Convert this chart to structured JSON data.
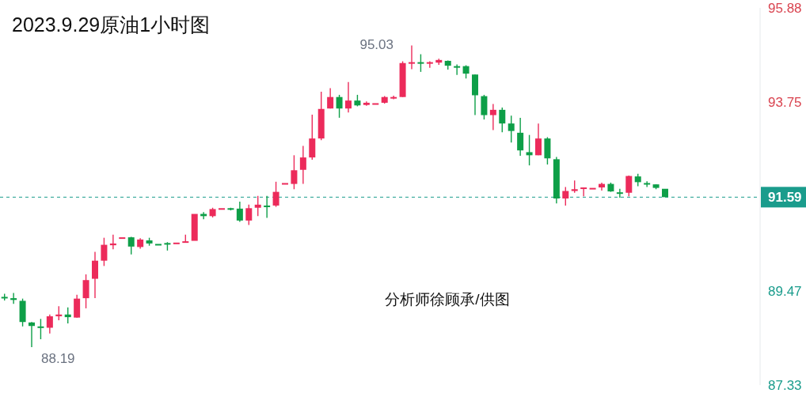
{
  "chart_data": {
    "type": "candlestick",
    "title": "2023.9.29原油1小时图",
    "categories": [
      null,
      null,
      null,
      null,
      null,
      null,
      null,
      null,
      null,
      null,
      null,
      null,
      null,
      null,
      null,
      null,
      null,
      null,
      null,
      null,
      null,
      null,
      null,
      null,
      null,
      null,
      null,
      null,
      null,
      null,
      null,
      null,
      null,
      null,
      null,
      null,
      null,
      null,
      null,
      null,
      null,
      null,
      null,
      null,
      null,
      null,
      null,
      null,
      null,
      null,
      null,
      null,
      null,
      null,
      null,
      null,
      null,
      null,
      null,
      null,
      null,
      null,
      null,
      null,
      null,
      null,
      null,
      null,
      null,
      null,
      null,
      null,
      null,
      null,
      null,
      null,
      null,
      null,
      null,
      null,
      null,
      null,
      null,
      null
    ],
    "ohlc": [
      [
        89.33,
        89.4,
        89.25,
        89.31
      ],
      [
        89.3,
        89.42,
        89.17,
        89.26
      ],
      [
        89.24,
        89.29,
        88.66,
        88.76
      ],
      [
        88.75,
        88.76,
        88.19,
        88.67
      ],
      [
        88.66,
        88.83,
        88.37,
        88.63
      ],
      [
        88.63,
        88.93,
        88.5,
        88.89
      ],
      [
        88.89,
        89.12,
        88.8,
        88.93
      ],
      [
        88.93,
        89.09,
        88.73,
        88.87
      ],
      [
        88.86,
        89.38,
        88.86,
        89.29
      ],
      [
        89.3,
        89.84,
        89.07,
        89.71
      ],
      [
        89.74,
        90.35,
        89.3,
        90.15
      ],
      [
        90.15,
        90.67,
        90.03,
        90.51
      ],
      [
        90.5,
        90.74,
        90.41,
        90.54
      ],
      [
        90.66,
        90.68,
        90.66,
        90.68
      ],
      [
        90.68,
        90.69,
        90.29,
        90.47
      ],
      [
        90.46,
        90.66,
        90.42,
        90.63
      ],
      [
        90.61,
        90.67,
        90.49,
        90.54
      ],
      [
        90.53,
        90.53,
        90.52,
        90.52
      ],
      [
        90.55,
        90.57,
        90.38,
        90.54
      ],
      [
        90.54,
        90.56,
        90.52,
        90.56
      ],
      [
        90.57,
        90.74,
        90.57,
        90.59
      ],
      [
        90.6,
        91.21,
        90.6,
        91.21
      ],
      [
        91.21,
        91.25,
        91.09,
        91.16
      ],
      [
        91.16,
        91.35,
        91.13,
        91.32
      ],
      [
        91.32,
        91.35,
        91.3,
        91.34
      ],
      [
        91.34,
        91.35,
        91.29,
        91.31
      ],
      [
        91.33,
        91.49,
        91.03,
        91.06
      ],
      [
        91.06,
        91.42,
        90.96,
        91.34
      ],
      [
        91.35,
        91.62,
        91.16,
        91.42
      ],
      [
        91.4,
        91.62,
        91.12,
        91.38
      ],
      [
        91.4,
        91.94,
        91.37,
        91.71
      ],
      [
        91.89,
        91.91,
        91.89,
        91.91
      ],
      [
        91.89,
        92.54,
        91.77,
        92.2
      ],
      [
        92.21,
        92.75,
        91.89,
        92.49
      ],
      [
        92.49,
        93.46,
        92.44,
        92.92
      ],
      [
        92.92,
        93.98,
        92.88,
        93.59
      ],
      [
        93.6,
        94.06,
        93.6,
        93.86
      ],
      [
        93.86,
        93.91,
        93.39,
        93.6
      ],
      [
        93.6,
        94.2,
        93.51,
        93.78
      ],
      [
        93.78,
        93.91,
        93.65,
        93.67
      ],
      [
        93.68,
        93.76,
        93.66,
        93.73
      ],
      [
        93.71,
        93.72,
        93.71,
        93.72
      ],
      [
        93.73,
        93.88,
        93.71,
        93.86
      ],
      [
        93.84,
        93.89,
        93.81,
        93.86
      ],
      [
        93.86,
        94.67,
        93.86,
        94.63
      ],
      [
        94.63,
        95.03,
        94.49,
        94.65
      ],
      [
        94.65,
        94.83,
        94.43,
        94.63
      ],
      [
        94.63,
        94.67,
        94.52,
        94.65
      ],
      [
        94.64,
        94.73,
        94.59,
        94.7
      ],
      [
        94.68,
        94.69,
        94.48,
        94.57
      ],
      [
        94.56,
        94.6,
        94.36,
        94.54
      ],
      [
        94.56,
        94.58,
        94.28,
        94.39
      ],
      [
        94.37,
        94.37,
        93.45,
        93.9
      ],
      [
        93.88,
        93.91,
        93.35,
        93.45
      ],
      [
        93.45,
        93.7,
        93.11,
        93.57
      ],
      [
        93.57,
        93.62,
        93.06,
        93.26
      ],
      [
        93.26,
        93.44,
        92.83,
        93.09
      ],
      [
        93.05,
        93.39,
        92.53,
        92.65
      ],
      [
        92.61,
        93.0,
        92.31,
        92.54
      ],
      [
        92.54,
        93.26,
        92.54,
        92.92
      ],
      [
        92.92,
        92.95,
        92.33,
        92.47
      ],
      [
        92.45,
        92.5,
        91.45,
        91.56
      ],
      [
        91.56,
        91.82,
        91.4,
        91.73
      ],
      [
        91.73,
        91.97,
        91.69,
        91.77
      ],
      [
        91.78,
        91.81,
        91.61,
        91.81
      ],
      [
        91.79,
        91.8,
        91.79,
        91.8
      ],
      [
        91.81,
        91.92,
        91.74,
        91.89
      ],
      [
        91.89,
        91.92,
        91.71,
        91.72
      ],
      [
        91.7,
        91.78,
        91.58,
        91.67
      ],
      [
        91.69,
        92.08,
        91.61,
        92.07
      ],
      [
        92.06,
        92.12,
        91.84,
        91.93
      ],
      [
        91.91,
        91.95,
        91.82,
        91.89
      ],
      [
        91.88,
        91.88,
        91.77,
        91.8
      ],
      [
        91.78,
        91.78,
        91.58,
        91.59
      ],
      null,
      null,
      null,
      null,
      null,
      null,
      null,
      null,
      null,
      null
    ],
    "ylim": [
      87.33,
      95.88
    ],
    "yticks": [
      95.88,
      93.75,
      89.47,
      87.33
    ],
    "tick_labels": "y",
    "grid": false,
    "ref_lines": [
      {
        "axis": "y",
        "value": 91.59,
        "label": "91.59",
        "color": "#1a9c8c",
        "line_style": "dashed"
      }
    ],
    "annotations": [
      "分析师徐顾承/供图",
      "95.03",
      "88.19"
    ]
  }
}
